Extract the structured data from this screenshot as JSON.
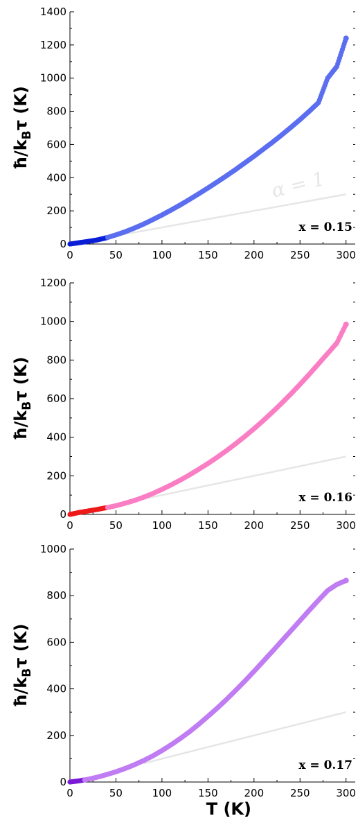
{
  "chart_data": [
    {
      "type": "scatter",
      "ylabel": "ħ/k_Bτ (K)",
      "xlim": [
        0,
        310
      ],
      "ylim": [
        0,
        1400
      ],
      "x_ticks": [
        0,
        50,
        100,
        150,
        200,
        250,
        300
      ],
      "y_ticks": [
        0,
        200,
        400,
        600,
        800,
        1000,
        1200,
        1400
      ],
      "annotation": "x = 0.15",
      "reference_label": "α = 1",
      "colors": {
        "low_T": "#0a1fd6",
        "high_T": "#5b6ef0",
        "reference": "#e6e6e6"
      },
      "low_T_max": 40,
      "series": [
        {
          "x": [
            0,
            10,
            20,
            30,
            40,
            50,
            60,
            70,
            80,
            90,
            100,
            110,
            120,
            130,
            140,
            150,
            160,
            170,
            180,
            190,
            200,
            210,
            220,
            230,
            240,
            250,
            260,
            270,
            280,
            290,
            300
          ],
          "y": [
            0,
            8,
            16,
            25,
            38,
            55,
            74,
            96,
            120,
            147,
            175,
            205,
            236,
            269,
            303,
            338,
            374,
            411,
            449,
            489,
            529,
            571,
            613,
            657,
            703,
            750,
            800,
            852,
            1000,
            1070,
            1240
          ]
        }
      ],
      "reference": {
        "x": [
          40,
          300
        ],
        "y": [
          40,
          300
        ]
      }
    },
    {
      "type": "scatter",
      "ylabel": "ħ/k_Bτ (K)",
      "xlim": [
        0,
        310
      ],
      "ylim": [
        0,
        1200
      ],
      "x_ticks": [
        0,
        50,
        100,
        150,
        200,
        250,
        300
      ],
      "y_ticks": [
        0,
        200,
        400,
        600,
        800,
        1000,
        1200
      ],
      "annotation": "x = 0.16",
      "colors": {
        "low_T": "#ee1b1b",
        "high_T": "#fa7ec4",
        "reference": "#e6e6e6"
      },
      "low_T_max": 40,
      "series": [
        {
          "x": [
            0,
            10,
            20,
            30,
            40,
            50,
            60,
            70,
            80,
            90,
            100,
            110,
            120,
            130,
            140,
            150,
            160,
            170,
            180,
            190,
            200,
            210,
            220,
            230,
            240,
            250,
            260,
            270,
            280,
            290,
            300
          ],
          "y": [
            0,
            10,
            18,
            26,
            35,
            45,
            58,
            72,
            89,
            108,
            130,
            153,
            178,
            205,
            234,
            264,
            296,
            330,
            366,
            404,
            444,
            486,
            530,
            576,
            624,
            674,
            726,
            780,
            834,
            888,
            985
          ]
        }
      ],
      "reference": {
        "x": [
          40,
          300
        ],
        "y": [
          40,
          300
        ]
      }
    },
    {
      "type": "scatter",
      "xlabel": "T (K)",
      "ylabel": "ħ/k_Bτ (K)",
      "xlim": [
        0,
        310
      ],
      "ylim": [
        0,
        1000
      ],
      "x_ticks": [
        0,
        50,
        100,
        150,
        200,
        250,
        300
      ],
      "y_ticks": [
        0,
        200,
        400,
        600,
        800,
        1000
      ],
      "annotation": "x = 0.17",
      "colors": {
        "low_T": "#7a1ad6",
        "high_T": "#c07cf2",
        "reference": "#e6e6e6"
      },
      "low_T_max": 15,
      "series": [
        {
          "x": [
            0,
            10,
            20,
            30,
            40,
            50,
            60,
            70,
            80,
            90,
            100,
            110,
            120,
            130,
            140,
            150,
            160,
            170,
            180,
            190,
            200,
            210,
            220,
            230,
            240,
            250,
            260,
            270,
            280,
            290,
            300
          ],
          "y": [
            0,
            5,
            12,
            21,
            32,
            44,
            58,
            74,
            92,
            112,
            135,
            160,
            187,
            216,
            248,
            282,
            317,
            354,
            393,
            433,
            475,
            518,
            561,
            605,
            649,
            693,
            737,
            780,
            822,
            848,
            865
          ]
        }
      ],
      "reference": {
        "x": [
          80,
          300
        ],
        "y": [
          80,
          300
        ]
      }
    }
  ]
}
